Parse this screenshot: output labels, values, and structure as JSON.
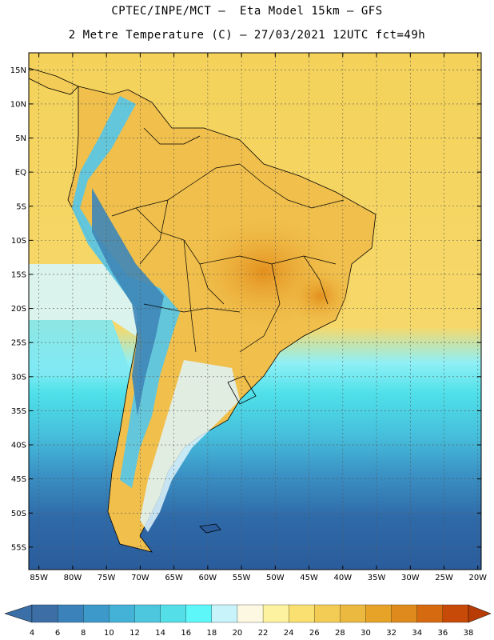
{
  "header": {
    "line1": "CPTEC/INPE/MCT –  Eta Model 15km – GFS",
    "line2": "2 Metre Temperature (C) – 27/03/2021 12UTC fct=49h"
  },
  "axes": {
    "lat_labels": [
      "15N",
      "10N",
      "5N",
      "EQ",
      "5S",
      "10S",
      "15S",
      "20S",
      "25S",
      "30S",
      "35S",
      "40S",
      "45S",
      "50S",
      "55S"
    ],
    "lon_labels": [
      "85W",
      "80W",
      "75W",
      "70W",
      "65W",
      "60W",
      "55W",
      "50W",
      "45W",
      "40W",
      "35W",
      "30W",
      "25W",
      "20W"
    ],
    "lat_values": [
      15,
      10,
      5,
      0,
      -5,
      -10,
      -15,
      -20,
      -25,
      -30,
      -35,
      -40,
      -45,
      -50,
      -55
    ],
    "lon_values": [
      -85,
      -80,
      -75,
      -70,
      -65,
      -60,
      -55,
      -50,
      -45,
      -40,
      -35,
      -30,
      -25,
      -20
    ],
    "grid": true
  },
  "colorbar": {
    "labels": [
      "4",
      "6",
      "8",
      "10",
      "12",
      "14",
      "16",
      "18",
      "20",
      "22",
      "24",
      "26",
      "28",
      "30",
      "32",
      "34",
      "36",
      "38"
    ],
    "colors": [
      "#3d6fa6",
      "#3a82b9",
      "#3c99c9",
      "#44b1d6",
      "#4cc7dd",
      "#54dfe8",
      "#5ef7f9",
      "#c9f3fb",
      "#fdf8e1",
      "#fdf29f",
      "#f9e070",
      "#f3cc55",
      "#ebb840",
      "#e6a328",
      "#de8a1c",
      "#d66a10",
      "#c84a08"
    ],
    "under_color": "#3a6fa8",
    "over_color": "#b83c06"
  },
  "colors": {
    "ocean_cold": "#2a5e9e",
    "ocean_mid": "#3fa3cc",
    "ocean_cyan": "#4fe0e9",
    "ocean_warm": "#f5d45a",
    "land_warm": "#f0bd4a",
    "land_hot": "#e69a24",
    "andes": "#6cc8e6",
    "border": "#000000"
  }
}
